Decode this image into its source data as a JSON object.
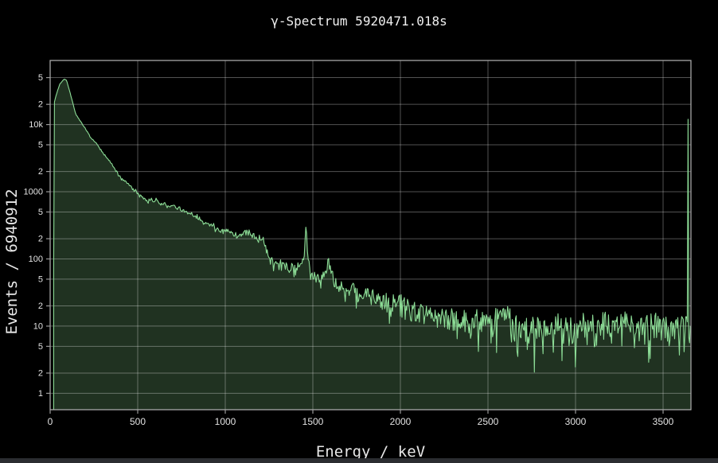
{
  "window": {
    "background": "#000000",
    "bottom_strip_color": "#2b2d31"
  },
  "chart_data": {
    "type": "area",
    "title": "γ-Spectrum 5920471.018s",
    "xlabel": "Energy / keV",
    "ylabel": "Events / 6940912",
    "x_axis": {
      "label": "Energy / keV",
      "min": 0,
      "max": 3659,
      "ticks": [
        0,
        500,
        1000,
        1500,
        2000,
        2500,
        3000,
        3500
      ]
    },
    "y_axis": {
      "label": "Events / 6940912",
      "scale": "log",
      "min": 0.57,
      "max": 90000,
      "ticks": [
        {
          "v": 50000,
          "label": "5"
        },
        {
          "v": 20000,
          "label": "2"
        },
        {
          "v": 10000,
          "label": "10k"
        },
        {
          "v": 5000,
          "label": "5"
        },
        {
          "v": 2000,
          "label": "2"
        },
        {
          "v": 1000,
          "label": "1000"
        },
        {
          "v": 500,
          "label": "5"
        },
        {
          "v": 200,
          "label": "2"
        },
        {
          "v": 100,
          "label": "100"
        },
        {
          "v": 50,
          "label": "5"
        },
        {
          "v": 20,
          "label": "2"
        },
        {
          "v": 10,
          "label": "10"
        },
        {
          "v": 5,
          "label": "5"
        },
        {
          "v": 2,
          "label": "2"
        },
        {
          "v": 1,
          "label": "1"
        }
      ]
    },
    "series": [
      {
        "name": "gamma-spectrum",
        "bin_kev": 4.5,
        "noise_model": "poisson",
        "noise_seed": 1337,
        "anchor_points": [
          [
            20,
            80
          ],
          [
            23,
            21000
          ],
          [
            35,
            28000
          ],
          [
            55,
            40000
          ],
          [
            80,
            48000
          ],
          [
            95,
            45000
          ],
          [
            120,
            26000
          ],
          [
            145,
            14500
          ],
          [
            170,
            11500
          ],
          [
            200,
            8800
          ],
          [
            230,
            6500
          ],
          [
            260,
            5400
          ],
          [
            305,
            3700
          ],
          [
            350,
            2600
          ],
          [
            395,
            1700
          ],
          [
            440,
            1350
          ],
          [
            510,
            900
          ],
          [
            560,
            720
          ],
          [
            577,
            810
          ],
          [
            590,
            690
          ],
          [
            609,
            780
          ],
          [
            625,
            640
          ],
          [
            665,
            640
          ],
          [
            714,
            600
          ],
          [
            805,
            460
          ],
          [
            895,
            340
          ],
          [
            1000,
            250
          ],
          [
            1077,
            225
          ],
          [
            1120,
            245
          ],
          [
            1170,
            210
          ],
          [
            1215,
            200
          ],
          [
            1230,
            150
          ],
          [
            1250,
            95
          ],
          [
            1330,
            78
          ],
          [
            1400,
            72
          ],
          [
            1440,
            80
          ],
          [
            1452,
            140
          ],
          [
            1461,
            330
          ],
          [
            1470,
            140
          ],
          [
            1485,
            70
          ],
          [
            1510,
            57
          ],
          [
            1550,
            50
          ],
          [
            1580,
            70
          ],
          [
            1591,
            116
          ],
          [
            1602,
            65
          ],
          [
            1620,
            45
          ],
          [
            1660,
            38
          ],
          [
            1760,
            30
          ],
          [
            1870,
            25
          ],
          [
            2000,
            22
          ],
          [
            2120,
            18.5
          ],
          [
            2260,
            15
          ],
          [
            2390,
            11.5
          ],
          [
            2530,
            11
          ],
          [
            2600,
            16
          ],
          [
            2618,
            15
          ],
          [
            2650,
            10.5
          ],
          [
            2750,
            9.5
          ],
          [
            2900,
            9.5
          ],
          [
            3100,
            10
          ],
          [
            3300,
            10
          ],
          [
            3500,
            10
          ],
          [
            3655,
            10.5
          ]
        ],
        "overflow_bin": {
          "energy": 3641,
          "counts": 12000
        }
      }
    ],
    "grid": true,
    "legend": "none",
    "colors": {
      "line": "#8cdc96",
      "fill": "#203221",
      "grid": "rgba(255,255,255,0.32)",
      "frame": "#b4b4b4",
      "tick_mark": "#9a9a9a",
      "tick_text": "#e2e2e2",
      "title_text": "#f0f0f0",
      "axis_label_text": "#e8e8e8",
      "background": "#000000"
    }
  }
}
